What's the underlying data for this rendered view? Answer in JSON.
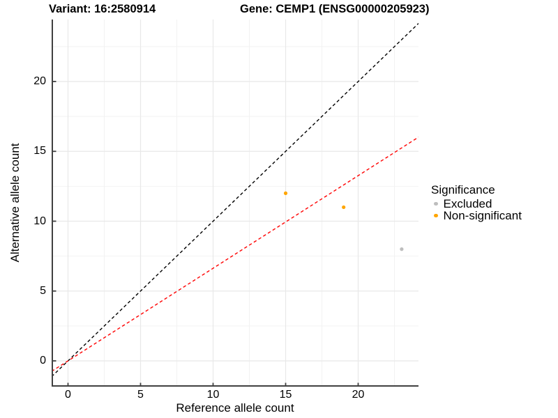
{
  "titles": {
    "variant": "Variant: 16:2580914",
    "gene": "Gene: CEMP1 (ENSG00000205923)"
  },
  "chart_data": {
    "type": "scatter",
    "xlabel": "Reference allele count",
    "ylabel": "Alternative allele count",
    "x_ticks": [
      0,
      5,
      10,
      15,
      20
    ],
    "y_ticks": [
      0,
      5,
      10,
      15,
      20
    ],
    "xlim": [
      -1.15,
      24.15
    ],
    "ylim": [
      -1.85,
      24.45
    ],
    "grid": "major+minor",
    "grid_major_color": "#e8e8e8",
    "grid_minor_color": "#f2f2f2",
    "axis_line_color": "#404040",
    "series": [
      {
        "name": "Excluded",
        "color": "#bebebe",
        "points": [
          {
            "x": 23,
            "y": 8
          }
        ]
      },
      {
        "name": "Non-significant",
        "color": "#ffa500",
        "points": [
          {
            "x": 15,
            "y": 12
          },
          {
            "x": 19,
            "y": 11
          }
        ]
      }
    ],
    "reference_lines": [
      {
        "name": "identity",
        "slope": 1,
        "intercept": 0,
        "color": "#000000",
        "style": "dashed"
      },
      {
        "name": "expected-ratio",
        "slope": 0.663,
        "intercept": 0,
        "color": "#ff0000",
        "style": "dashed"
      }
    ],
    "legend": {
      "title": "Significance",
      "position": "right",
      "items": [
        {
          "label": "Excluded",
          "color": "#bebebe"
        },
        {
          "label": "Non-significant",
          "color": "#ffa500"
        }
      ]
    }
  }
}
